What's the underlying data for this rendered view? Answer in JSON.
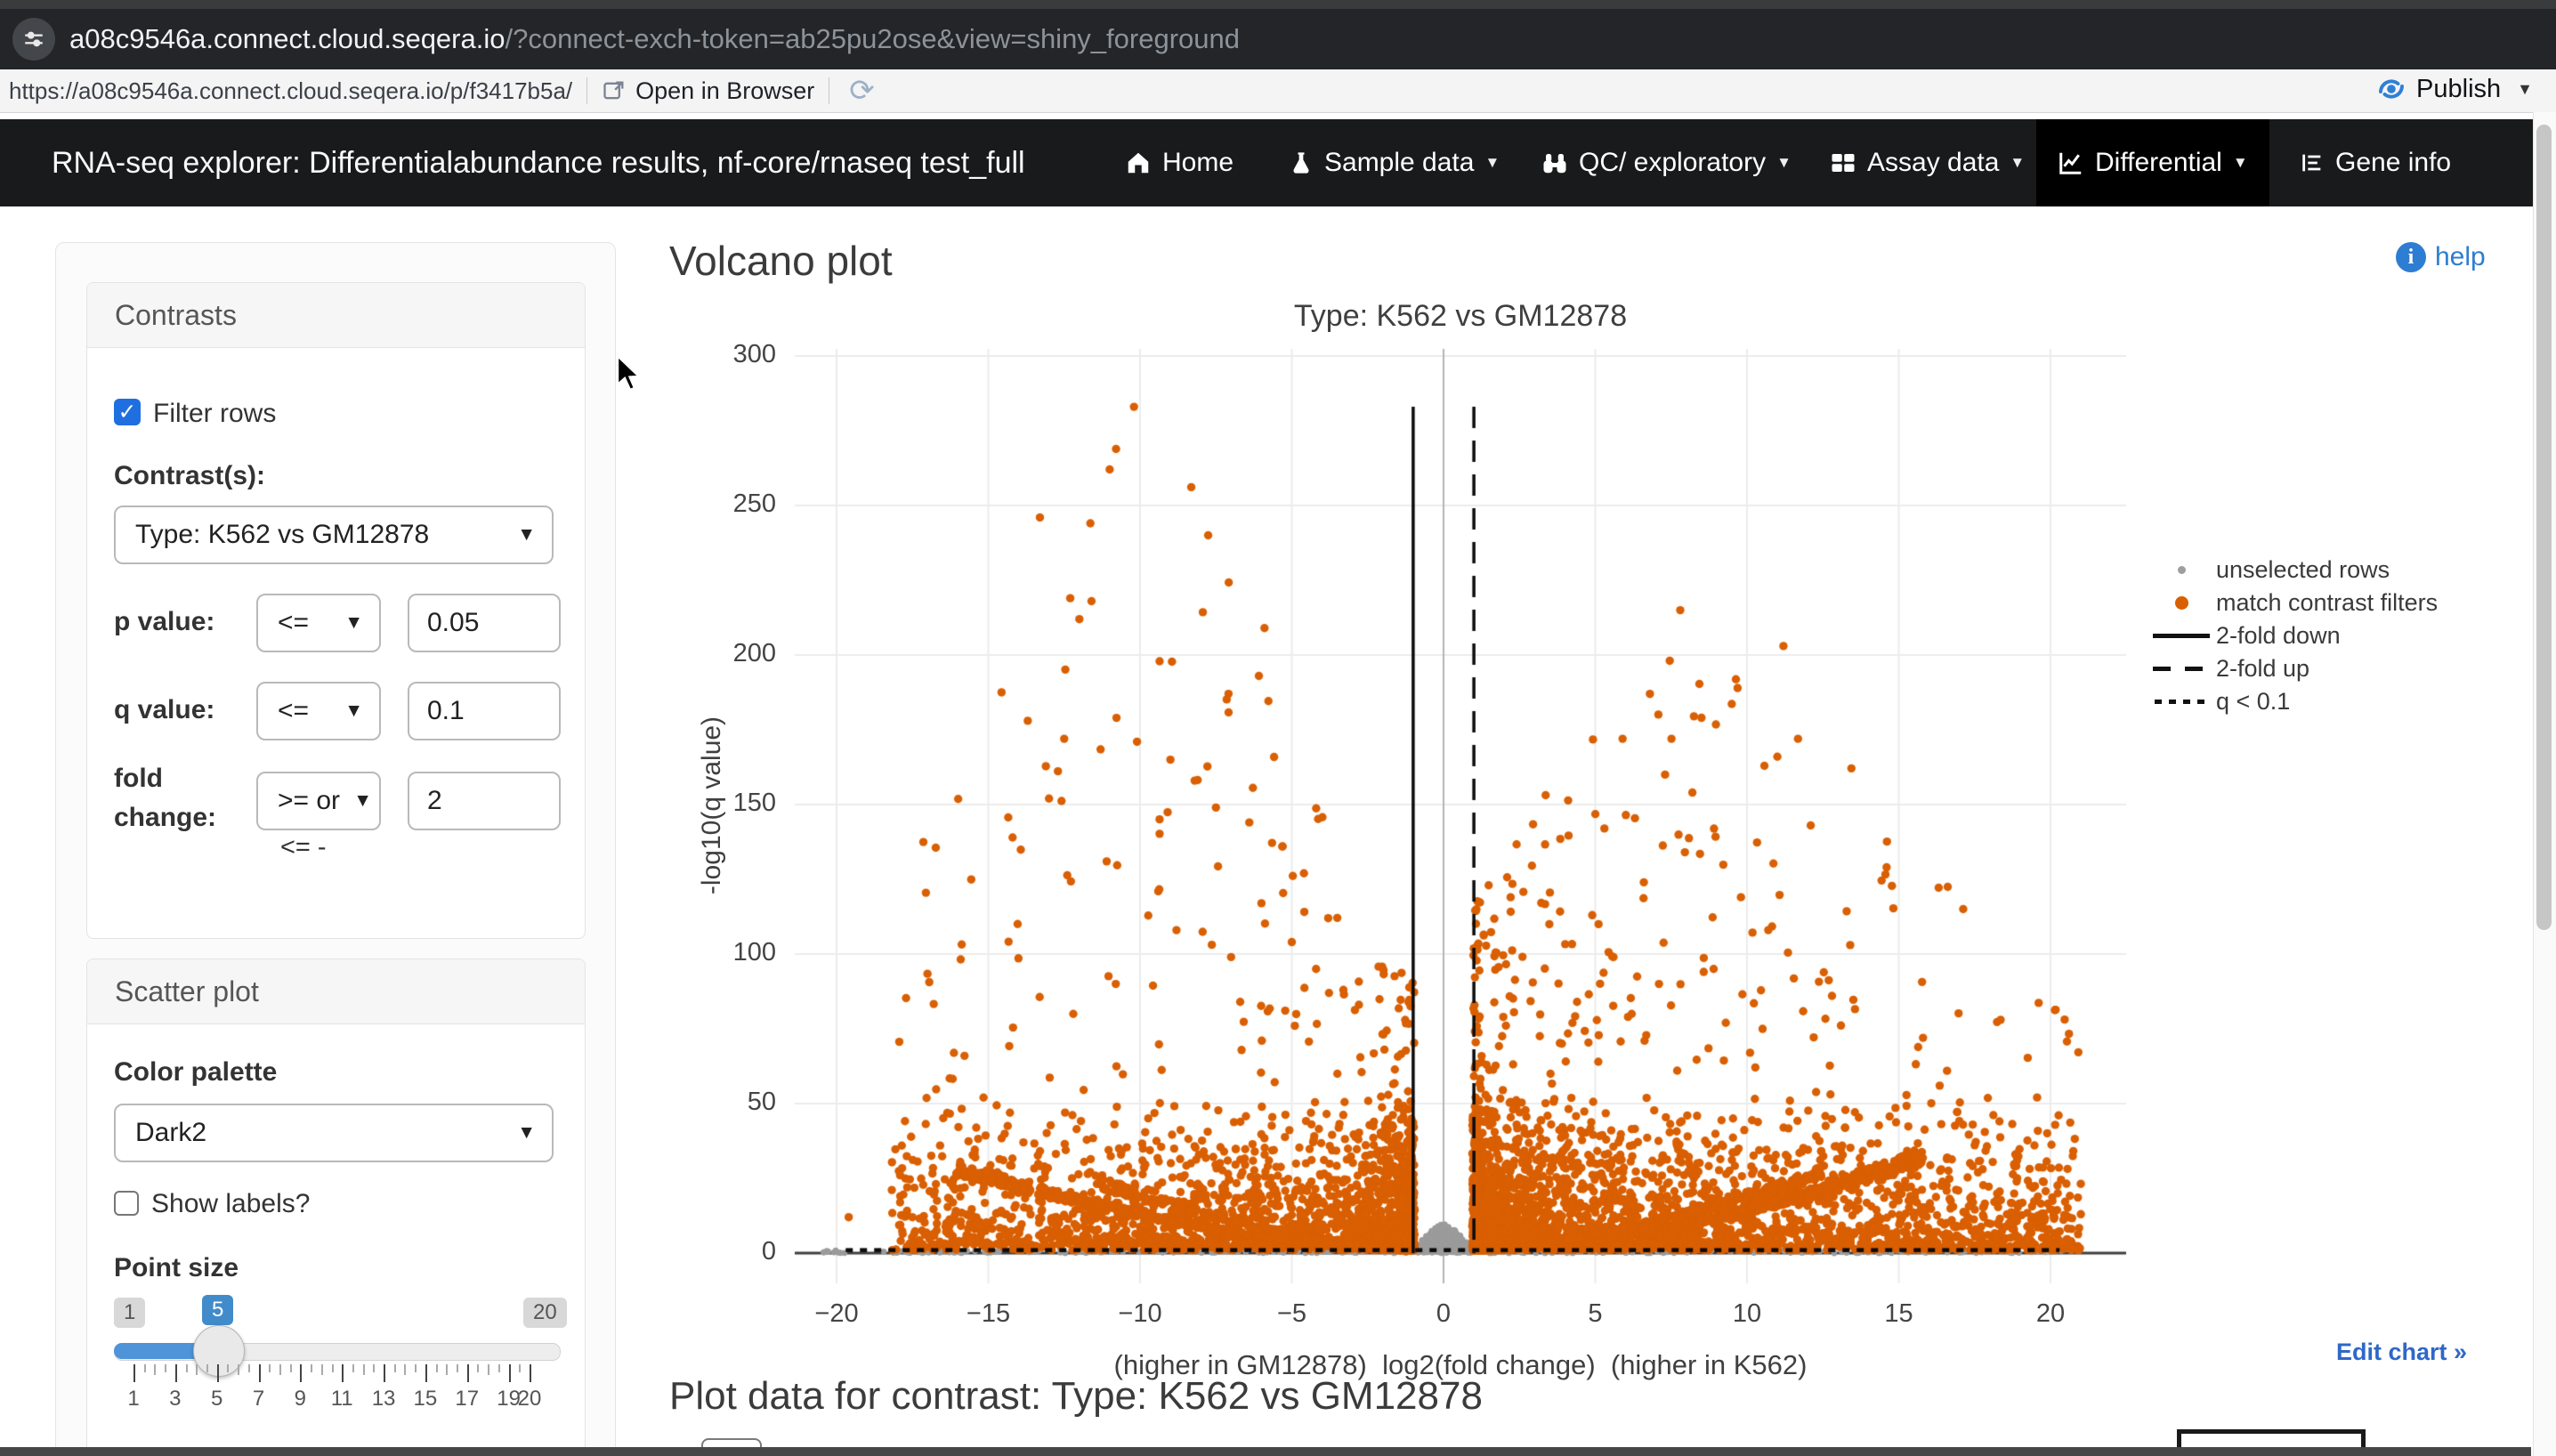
{
  "browser": {
    "url_host": "a08c9546a.connect.cloud.seqera.io",
    "url_query": "/?connect-exch-token=ab25pu2ose&view=shiny_foreground",
    "address_url": "https://a08c9546a.connect.cloud.seqera.io/p/f3417b5a/",
    "open_in_browser_label": "Open in Browser",
    "publish_label": "Publish"
  },
  "navbar": {
    "title": "RNA-seq explorer: Differentialabundance results, nf-core/rnaseq test_full",
    "items": [
      {
        "label": "Home",
        "icon": "home-icon",
        "caret": false,
        "active": false
      },
      {
        "label": "Sample data",
        "icon": "flask-icon",
        "caret": true,
        "active": false
      },
      {
        "label": "QC/ exploratory",
        "icon": "binoculars-icon",
        "caret": true,
        "active": false
      },
      {
        "label": "Assay data",
        "icon": "table-icon",
        "caret": true,
        "active": false
      },
      {
        "label": "Differential",
        "icon": "chart-line-icon",
        "caret": true,
        "active": true
      },
      {
        "label": "Gene info",
        "icon": "list-icon",
        "caret": false,
        "active": false
      }
    ]
  },
  "sidebar": {
    "contrasts": {
      "title": "Contrasts",
      "filter_rows_label": "Filter rows",
      "filter_rows_checked": true,
      "contrast_label": "Contrast(s):",
      "contrast_value": "Type: K562 vs GM12878",
      "p_label": "p value:",
      "p_op": "<=",
      "p_value": "0.05",
      "q_label": "q value:",
      "q_op": "<=",
      "q_value": "0.1",
      "fc_label_line1": "fold",
      "fc_label_line2": "change:",
      "fc_op": ">= or",
      "fc_op_overflow": "<= -",
      "fc_value": "2"
    },
    "scatter": {
      "title": "Scatter plot",
      "palette_label": "Color palette",
      "palette_value": "Dark2",
      "show_labels_label": "Show labels?",
      "show_labels_checked": false,
      "point_size_label": "Point size",
      "slider": {
        "min_label": "1",
        "max_label": "20",
        "value_label": "5",
        "min": 1,
        "max": 20,
        "value": 5,
        "tick_values": [
          1,
          3,
          5,
          7,
          9,
          11,
          13,
          15,
          17,
          19,
          20
        ],
        "tick_labels": [
          "1",
          "3",
          "5",
          "7",
          "9",
          "11",
          "13",
          "15",
          "17",
          "19",
          "20"
        ]
      }
    }
  },
  "main": {
    "heading": "Volcano plot",
    "help_label": "help",
    "plot_data_heading": "Plot data for contrast: Type: K562 vs GM12878",
    "edit_chart_label": "Edit chart »"
  },
  "chart_data": {
    "type": "scatter",
    "title": "Type: K562 vs GM12878",
    "xlabel": "(higher in GM12878)  log2(fold change)  (higher in K562)",
    "ylabel": "-log10(q value)",
    "xlim": [
      -22,
      22.5
    ],
    "ylim": [
      0,
      305
    ],
    "grid": true,
    "legend_position": "right",
    "xtick_values": [
      -20,
      -15,
      -10,
      -5,
      0,
      5,
      10,
      15,
      20
    ],
    "xtick_labels": [
      "−20",
      "−15",
      "−10",
      "−5",
      "0",
      "5",
      "10",
      "15",
      "20"
    ],
    "ytick_values": [
      0,
      50,
      100,
      150,
      200,
      250,
      300
    ],
    "ytick_labels": [
      "0",
      "50",
      "100",
      "150",
      "200",
      "250",
      "300"
    ],
    "series": [
      {
        "name": "unselected rows",
        "color": "#9b9b9b"
      },
      {
        "name": "match contrast filters",
        "color": "#D95F02"
      }
    ],
    "legend": [
      {
        "symbol": "dot-small",
        "color": "#9e9e9e",
        "label": "unselected rows"
      },
      {
        "symbol": "dot",
        "color": "#D95F02",
        "label": "match contrast filters"
      },
      {
        "symbol": "line-solid",
        "color": "#111111",
        "label": "2-fold down"
      },
      {
        "symbol": "line-dashed",
        "color": "#111111",
        "label": "2-fold up"
      },
      {
        "symbol": "line-dotted",
        "color": "#111111",
        "label": "q < 0.1"
      }
    ],
    "reference_lines": [
      {
        "type": "vline",
        "x": -1,
        "style": "solid",
        "label": "2-fold down"
      },
      {
        "type": "vline",
        "x": 1,
        "style": "dashed",
        "label": "2-fold up"
      },
      {
        "type": "hline",
        "y": 1,
        "style": "dotted",
        "label": "q < 0.1"
      }
    ],
    "notable_points": {
      "left_tall": [
        [
          -10.2,
          283
        ],
        [
          -13.3,
          246
        ],
        [
          -12.3,
          219
        ],
        [
          -11.6,
          218
        ],
        [
          -12.0,
          212
        ],
        [
          -5.9,
          209
        ],
        [
          -13.7,
          178
        ],
        [
          -12.5,
          172
        ],
        [
          -10.1,
          171
        ],
        [
          -9.0,
          165
        ],
        [
          -8.2,
          158
        ],
        [
          -13.0,
          152
        ],
        [
          -7.5,
          149
        ],
        [
          -6.4,
          144
        ],
        [
          -14.2,
          139
        ],
        [
          -5.3,
          136
        ],
        [
          -11.1,
          131
        ],
        [
          -4.6,
          127
        ],
        [
          -9.4,
          121
        ],
        [
          -6.0,
          117
        ],
        [
          -3.8,
          112
        ],
        [
          -8.8,
          108
        ],
        [
          -5.0,
          104
        ],
        [
          -7.0,
          99
        ],
        [
          -4.2,
          95
        ],
        [
          -10.8,
          90
        ],
        [
          -3.3,
          88
        ],
        [
          -6.7,
          84
        ],
        [
          -12.2,
          80
        ],
        [
          -4.9,
          76
        ]
      ],
      "right_tall": [
        [
          7.8,
          215
        ],
        [
          11.2,
          203
        ],
        [
          6.8,
          187
        ],
        [
          8.5,
          179
        ],
        [
          5.9,
          172
        ],
        [
          11.0,
          166
        ],
        [
          7.3,
          160
        ],
        [
          8.2,
          154
        ],
        [
          12.1,
          143
        ],
        [
          5.3,
          142
        ],
        [
          14.6,
          129
        ],
        [
          6.6,
          124
        ],
        [
          9.8,
          119
        ],
        [
          4.9,
          113
        ],
        [
          10.7,
          108
        ],
        [
          13.4,
          103
        ],
        [
          5.6,
          99
        ],
        [
          8.9,
          95
        ],
        [
          7.1,
          90
        ],
        [
          12.8,
          86
        ],
        [
          4.4,
          84
        ],
        [
          6.2,
          80
        ],
        [
          9.3,
          77
        ],
        [
          15.8,
          72
        ],
        [
          3.9,
          70
        ],
        [
          10.1,
          67
        ],
        [
          5.1,
          64
        ],
        [
          7.7,
          61
        ]
      ],
      "outliers": [
        [
          -19.6,
          12
        ],
        [
          20.1,
          12.6
        ],
        [
          -14.7,
          27
        ],
        [
          15.4,
          26
        ],
        [
          18.9,
          31
        ],
        [
          -16.8,
          6.5
        ],
        [
          21.0,
          13
        ],
        [
          16.4,
          28
        ],
        [
          12.9,
          16
        ],
        [
          13.3,
          15
        ],
        [
          -17.5,
          12
        ],
        [
          17.8,
          12
        ]
      ]
    },
    "generator": {
      "seed": 7,
      "wings": [
        {
          "side": -1,
          "n": 2300,
          "span": 17.2,
          "xpow": 2.2,
          "base": 55,
          "peak": 230,
          "mu": 10.5,
          "sig": 48,
          "low": 52,
          "ypow": 3.4
        },
        {
          "side": 1,
          "n": 3300,
          "span": 20.0,
          "xpow": 2.3,
          "base": 55,
          "peak": 155,
          "mu": 9.0,
          "sig": 70,
          "low": 52,
          "ypow": 3.4
        }
      ],
      "arcs": [
        {
          "side": -1,
          "n": 520,
          "span": 15.0,
          "k": 0.34,
          "p": 1.62
        },
        {
          "side": 1,
          "n": 700,
          "span": 14.8,
          "k": 0.32,
          "p": 1.7
        },
        {
          "side": 1,
          "n": 300,
          "span": 11.5,
          "k": 0.66,
          "p": 1.5
        },
        {
          "side": -1,
          "n": 240,
          "span": 10.5,
          "k": 0.68,
          "p": 1.5
        }
      ],
      "gray": {
        "bump_n": 420,
        "bump_h": 9.5,
        "bump_w": 0.52,
        "band_n": 260,
        "band_y": 0.85,
        "band_span": 20.5
      }
    }
  }
}
